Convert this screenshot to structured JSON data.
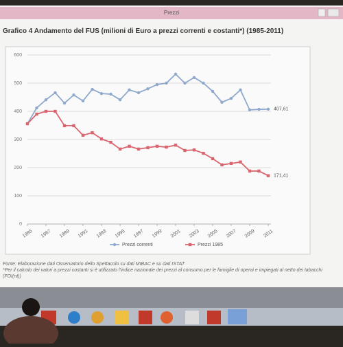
{
  "window": {
    "title": "Prezzi"
  },
  "chart_data": {
    "type": "line",
    "title": "Grafico 4 Andamento del FUS (milioni di Euro a prezzi correnti e costanti*) (1985-2011)",
    "x": [
      1985,
      1986,
      1987,
      1988,
      1989,
      1990,
      1991,
      1992,
      1993,
      1994,
      1995,
      1996,
      1997,
      1998,
      1999,
      2000,
      2001,
      2002,
      2003,
      2004,
      2005,
      2006,
      2007,
      2008,
      2009,
      2010,
      2011
    ],
    "xlim": [
      1985,
      2011
    ],
    "xticks": [
      1985,
      1987,
      1989,
      1991,
      1993,
      1995,
      1997,
      1999,
      2001,
      2003,
      2005,
      2007,
      2009,
      2011
    ],
    "ylim": [
      0,
      600
    ],
    "yticks": [
      0,
      100,
      200,
      300,
      400,
      500,
      600
    ],
    "grid": true,
    "legend": "bottom",
    "series": [
      {
        "name": "Prezzi correnti",
        "color": "#8fa9cc",
        "values": [
          356,
          412,
          441,
          466,
          429,
          458,
          437,
          478,
          463,
          461,
          441,
          476,
          466,
          480,
          495,
          500,
          532,
          500,
          520,
          500,
          471,
          432,
          446,
          476,
          405,
          407,
          407.61
        ],
        "value_labels": [
          null,
          null,
          null,
          null,
          null,
          null,
          null,
          null,
          null,
          null,
          null,
          null,
          null,
          null,
          null,
          null,
          null,
          null,
          null,
          null,
          null,
          null,
          null,
          null,
          null,
          null,
          "407,61"
        ]
      },
      {
        "name": "Prezzi 1985",
        "color": "#d9666f",
        "values": [
          356,
          390,
          400,
          400,
          349,
          349,
          315,
          324,
          302,
          290,
          266,
          276,
          266,
          271,
          276,
          273,
          280,
          261,
          263,
          251,
          232,
          210,
          215,
          220,
          188,
          188,
          171.41
        ],
        "value_labels": [
          null,
          null,
          null,
          null,
          null,
          null,
          null,
          null,
          null,
          null,
          null,
          null,
          null,
          null,
          null,
          null,
          null,
          null,
          null,
          null,
          null,
          null,
          null,
          null,
          null,
          null,
          "171,41"
        ]
      }
    ]
  },
  "footer": {
    "source": "Fonte: Elaborazione dati Osservatorio dello Spettacolo su dati MIBAC e su dati ISTAT",
    "note": "*Per il calcolo dei valori a prezzi costanti si è utilizzato l'indice nazionale dei prezzi al consumo per le famiglie di operai e impiegati al netto dei tabacchi (FOI(nt))"
  }
}
